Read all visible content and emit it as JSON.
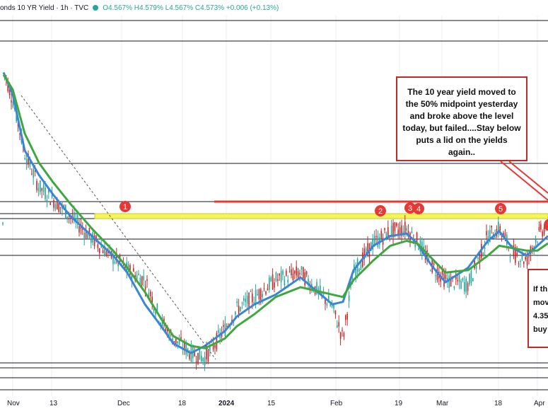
{
  "header": {
    "title": "onds 10 YR Yield · 1h · TVC",
    "ohlc": "O4.567% H4.579% L4.567% C4.573% +0.006 (+0.13%)"
  },
  "colors": {
    "fast_ma": "#3a86d6",
    "slow_ma": "#3ea83e",
    "annotation": "#e53935",
    "zone": "#f5f55a",
    "up_bar": "#26a69a",
    "down_bar": "#c62828",
    "level_line": "#131722"
  },
  "annotations": {
    "main_box": "The 10 year yield moved to the 50% midpoint yesterday and broke above the level today, but failed....Stay below puts a lid on the yields again..",
    "side_box_lines": [
      "If th",
      "mov",
      "4.35",
      "buy"
    ],
    "markers": [
      "1",
      "2",
      "3",
      "4",
      "5"
    ]
  },
  "chart_data": {
    "type": "line",
    "title": "",
    "xlabel": "",
    "ylabel": "",
    "x_tick_labels": [
      "Nov",
      "13",
      "Dec",
      "18",
      "2024",
      "15",
      "Feb",
      "19",
      "Mar",
      "18",
      "Apr"
    ],
    "y_axis_labels": [],
    "price_path": {
      "x": [
        "Nov 1",
        "Nov 3",
        "Nov 8",
        "Nov 13",
        "Nov 17",
        "Nov 22",
        "Nov 28",
        "Dec 1",
        "Dec 5",
        "Dec 8",
        "Dec 13",
        "Dec 18",
        "Dec 22",
        "Dec 27",
        "Jan 2",
        "Jan 5",
        "Jan 12",
        "Jan 19",
        "Jan 25",
        "Jan 31",
        "Feb 2",
        "Feb 8",
        "Feb 14",
        "Feb 20",
        "Feb 23",
        "Feb 27",
        "Mar 1",
        "Mar 6",
        "Mar 11",
        "Mar 15",
        "Mar 19",
        "Mar 22",
        "Mar 27",
        "Apr 1",
        "Apr 2"
      ],
      "y": [
        4.98,
        4.86,
        4.64,
        4.5,
        4.45,
        4.38,
        4.29,
        4.21,
        4.16,
        4.12,
        3.95,
        3.88,
        3.82,
        3.8,
        3.92,
        4.0,
        4.05,
        4.12,
        4.15,
        4.01,
        3.88,
        4.15,
        4.27,
        4.32,
        4.33,
        4.28,
        4.18,
        4.12,
        4.1,
        4.3,
        4.33,
        4.23,
        4.2,
        4.3,
        4.35
      ]
    },
    "series": [
      {
        "values": [
          4.97,
          4.88,
          4.65,
          4.55,
          4.47,
          4.38,
          4.3,
          4.22,
          4.15,
          4.02,
          3.93,
          3.86,
          3.82,
          3.85,
          3.91,
          3.97,
          4.02,
          4.06,
          4.13,
          4.02,
          4.03,
          4.16,
          4.26,
          4.3,
          4.31,
          4.27,
          4.18,
          4.11,
          4.17,
          4.28,
          4.32,
          4.25,
          4.22,
          4.26,
          4.3
        ]
      },
      {
        "values": [
          4.96,
          4.9,
          4.72,
          4.6,
          4.52,
          4.43,
          4.33,
          4.24,
          4.17,
          4.07,
          3.96,
          3.89,
          3.85,
          3.84,
          3.88,
          3.93,
          3.98,
          4.05,
          4.09,
          4.06,
          4.05,
          4.12,
          4.2,
          4.26,
          4.28,
          4.27,
          4.21,
          4.15,
          4.16,
          4.22,
          4.26,
          4.25,
          4.24,
          4.24,
          4.27
        ]
      }
    ],
    "grid": true,
    "legend": "none"
  }
}
